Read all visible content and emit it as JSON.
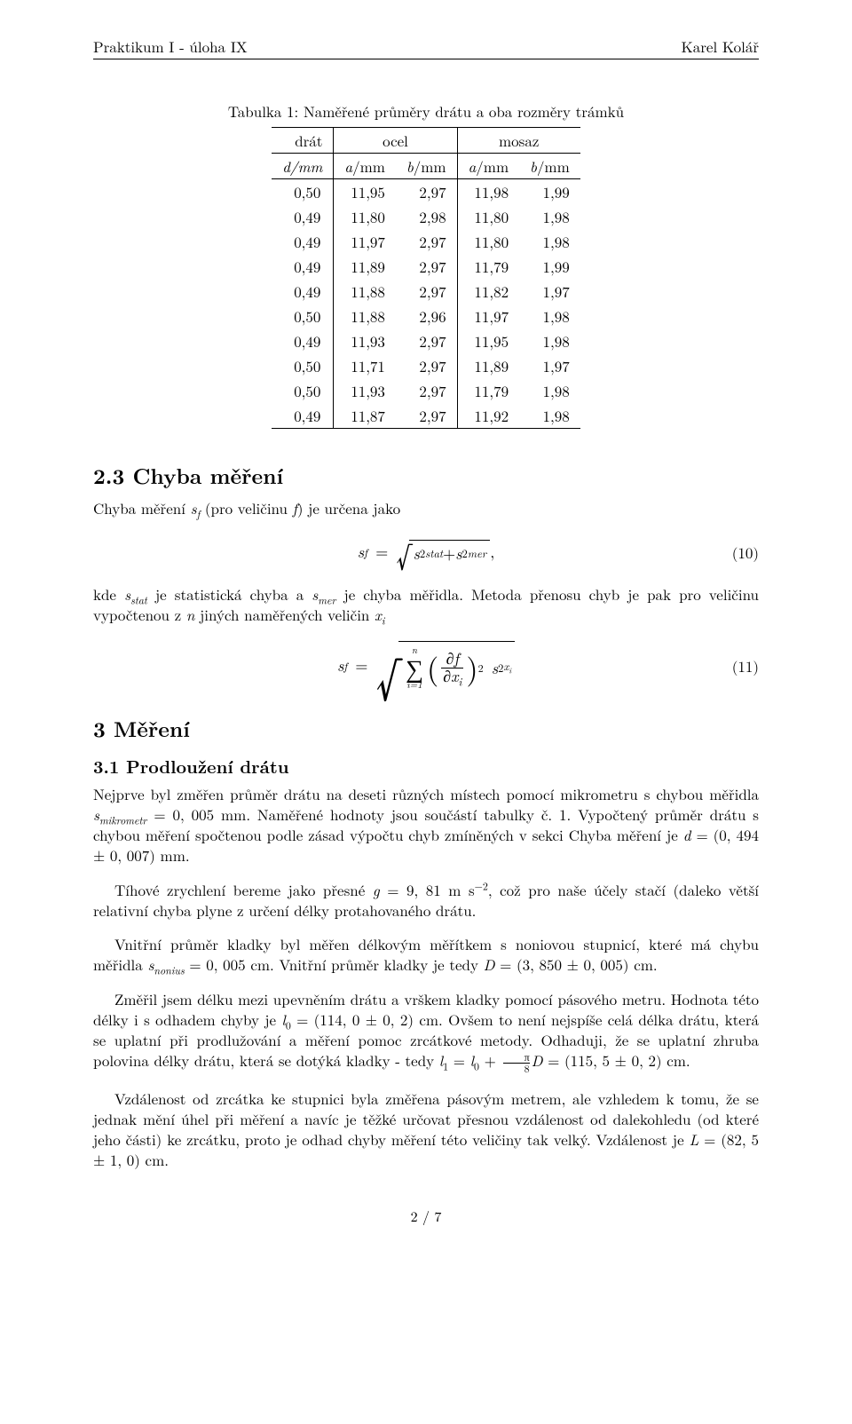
{
  "header": {
    "left": "Praktikum I - úloha IX",
    "right": "Karel Kolář"
  },
  "table": {
    "caption": "Tabulka 1: Naměřené průměry drátu a oba rozměry trámků",
    "group_headers": [
      "drát",
      "ocel",
      "mosaz"
    ],
    "unit_headers": [
      "d/mm",
      "a/mm",
      "b/mm",
      "a/mm",
      "b/mm"
    ],
    "rows": [
      [
        "0,50",
        "11,95",
        "2,97",
        "11,98",
        "1,99"
      ],
      [
        "0,49",
        "11,80",
        "2,98",
        "11,80",
        "1,98"
      ],
      [
        "0,49",
        "11,97",
        "2,97",
        "11,80",
        "1,98"
      ],
      [
        "0,49",
        "11,89",
        "2,97",
        "11,79",
        "1,99"
      ],
      [
        "0,49",
        "11,88",
        "2,97",
        "11,82",
        "1,97"
      ],
      [
        "0,50",
        "11,88",
        "2,96",
        "11,97",
        "1,98"
      ],
      [
        "0,49",
        "11,93",
        "2,97",
        "11,95",
        "1,98"
      ],
      [
        "0,50",
        "11,71",
        "2,97",
        "11,89",
        "1,97"
      ],
      [
        "0,50",
        "11,93",
        "2,97",
        "11,79",
        "1,98"
      ],
      [
        "0,49",
        "11,87",
        "2,97",
        "11,92",
        "1,98"
      ]
    ]
  },
  "sec23": {
    "heading": "2.3   Chyba měření",
    "p1_a": "Chyba měření ",
    "p1_b": " (pro veličinu ",
    "p1_c": ") je určena jako",
    "eq10_num": "(10)",
    "p2_a": "kde ",
    "p2_b": " je statistická chyba a ",
    "p2_c": " je chyba měřidla. Metoda přenosu chyb je pak pro veličinu vypočtenou z ",
    "p2_d": " jiných naměřených veličin ",
    "eq11_num": "(11)"
  },
  "sec3": {
    "heading": "3    Měření",
    "sub": "3.1   Prodloužení drátu",
    "p1": "Nejprve byl změřen průměr drátu na deseti různých místech pomocí mikrometru s chybou měřidla smikrometr = 0, 005 mm. Naměřené hodnoty jsou součástí tabulky č. 1. Vypočtený průměr drátu s chybou měření spočtenou podle zásad výpočtu chyb zmíněných v sekci Chyba měření je d = (0, 494 ± 0, 007) mm.",
    "p2_a": "Tíhové zrychlení bereme jako přesné ",
    "p2_b": ", což pro naše účely stačí (daleko větší relativní chyba plyne z určení délky protahovaného drátu.",
    "p3": "Vnitřní průměr kladky byl měřen délkovým měřítkem s noniovou stupnicí, které má chybu měřidla snonius = 0, 005 cm. Vnitřní průměr kladky je tedy D = (3, 850 ± 0, 005) cm.",
    "p4_a": "Změřil jsem délku mezi upevněním drátu a vrškem kladky pomocí pásového metru. Hodnota této délky i s odhadem chyby je ",
    "p4_b": ". Ovšem to není nejspíše celá délka drátu, která se uplatní při prodlužování a měření pomoc zrcátkové metody. Odhaduji, že se uplatní zhruba polovina délky drátu, která se dotýká kladky - tedy ",
    "p5": "Vzdálenost od zrcátka ke stupnici byla změřena pásovým metrem, ale vzhledem k tomu, že se jednak mění úhel při měření a navíc je těžké určovat přesnou vzdálenost od dalekohledu (od které jeho části) ke zrcátku, proto je odhad chyby měření této veličiny tak velký. Vzdálenost je L = (82, 5 ± 1, 0) cm."
  },
  "footer": "2 / 7"
}
